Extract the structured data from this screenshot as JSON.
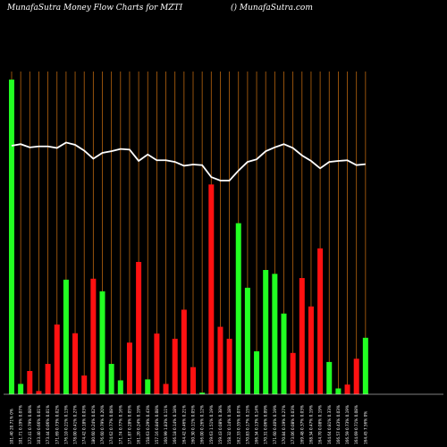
{
  "header": {
    "title": "MunafaSutra  Money Flow  Charts for MZTI",
    "site": "() MunafaSutra.com"
  },
  "colors": {
    "background": "#000000",
    "grid": "#b8650f",
    "up": "#22ff22",
    "down": "#ff1111",
    "line": "#ffffff"
  },
  "chart_data": {
    "type": "bar",
    "title": "MunafaSutra  Money Flow  Charts for MZTI",
    "grid": true,
    "ylim": [
      0,
      100
    ],
    "categories": [
      "101.40 20.71% 0%",
      "101.71 0.19% 0.07%",
      "172.41 0.79% 0.08%",
      "103.40 0.66% 0.01%",
      "173.44 0.06% 0.01%",
      "171.69 0.73% 0.02%",
      "176.10 0.21% 0.13%",
      "178.00 0.41% 0.27%",
      "174.42 0.18% 0.03%",
      "180.60 0.24% 0.02%",
      "176.60 0.79% 0.20%",
      "174.62 0.77% 0.08%",
      "171.74 0.77% 0.16%",
      "171.87 0.28% 0.05%",
      "161.20 0.24% 0.19%",
      "158.63 0.29% 0.43%",
      "157.16 0.84% 0.08%",
      "160.99 1.83% 0.11%",
      "166.18 0.14% 0.18%",
      "164.42 0.46% 0.21%",
      "160.30 0.11% 0.05%",
      "166.00 0.26% 0.12%",
      "159.63 1.51% 0.19%",
      "159.43 0.08% 0.38%",
      "158.32 0.14% 0.18%",
      "162.33 0.35% 0.07%",
      "170.83 0.17% 0.15%",
      "166.34 0.13% 0.14%",
      "170.31 0.06% 0.09%",
      "171.60 0.40% 0.19%",
      "170.84 0.19% 0.27%",
      "173.06 0.08% 0.03%",
      "169.48 0.37% 0.03%",
      "168.34 0.47% 0.19%",
      "164.70 0.08% 0.19%",
      "164.64 0.81% 0.33%",
      "166.57 0.43% 0.03%",
      "166.59 0.73% 0.19%",
      "164.69 0.71% 0.08%",
      "164.45 7.56% 0%"
    ],
    "series": [
      {
        "type": "bar",
        "values": [
          97.5,
          3.2,
          7.2,
          1.0,
          9.4,
          21.6,
          35.5,
          18.9,
          5.8,
          35.8,
          31.9,
          9.4,
          4.3,
          16.0,
          41.0,
          4.6,
          18.8,
          3.2,
          17.2,
          26.2,
          8.4,
          0.5,
          65.0,
          20.9,
          17.2,
          53.0,
          33.0,
          13.3,
          38.5,
          37.3,
          25.0,
          12.8,
          36.0,
          27.2,
          45.2,
          10.0,
          1.8,
          3.0,
          11.0,
          17.5
        ],
        "colors": [
          "up",
          "up",
          "down",
          "down",
          "down",
          "down",
          "up",
          "down",
          "down",
          "down",
          "up",
          "up",
          "up",
          "down",
          "down",
          "up",
          "down",
          "down",
          "down",
          "down",
          "down",
          "up",
          "down",
          "down",
          "down",
          "up",
          "up",
          "up",
          "up",
          "up",
          "up",
          "down",
          "down",
          "down",
          "down",
          "up",
          "up",
          "down",
          "down",
          "up"
        ]
      },
      {
        "type": "line",
        "values": [
          77,
          77.5,
          76.5,
          76.8,
          76.8,
          76.3,
          78,
          77.3,
          75.5,
          73,
          74.8,
          75.3,
          76,
          75.8,
          72.3,
          74.3,
          72.5,
          72.5,
          72,
          70.8,
          71.2,
          71,
          67.3,
          66.2,
          66.2,
          69.3,
          72,
          72.8,
          75.3,
          76.5,
          77.5,
          76.3,
          74,
          72.3,
          70,
          72,
          72.3,
          72.5,
          71,
          71.3
        ]
      }
    ]
  }
}
